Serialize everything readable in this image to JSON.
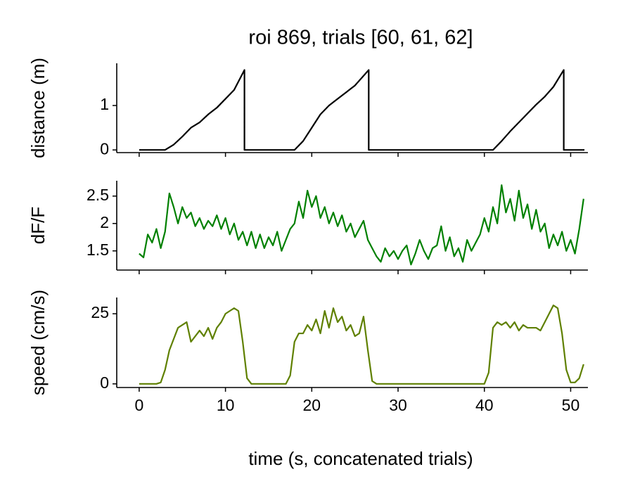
{
  "chart_data": [
    {
      "type": "line",
      "title": "roi 869, trials [60, 61, 62]",
      "ylabel": "distance (m)",
      "xlim": [
        -2.6,
        52.0
      ],
      "xticks": [
        0,
        10,
        20,
        30,
        40,
        50
      ],
      "ylim": [
        -0.06,
        1.95
      ],
      "yticks": [
        0,
        1
      ],
      "series": [
        {
          "color": "#000000",
          "x": [
            0,
            3,
            4,
            5,
            6,
            7,
            8,
            9,
            10,
            11,
            12.2,
            12.2,
            18,
            19,
            20,
            21,
            22,
            23,
            24,
            25,
            26.6,
            26.6,
            41,
            42,
            43,
            44,
            45,
            46,
            47,
            48,
            49.2,
            49.2,
            51.6
          ],
          "values": [
            0,
            0,
            0.12,
            0.3,
            0.5,
            0.62,
            0.8,
            0.95,
            1.15,
            1.35,
            1.8,
            0,
            0,
            0.2,
            0.5,
            0.8,
            1.0,
            1.15,
            1.3,
            1.45,
            1.8,
            0,
            0,
            0.2,
            0.42,
            0.62,
            0.82,
            1.02,
            1.2,
            1.42,
            1.8,
            0,
            0
          ]
        }
      ]
    },
    {
      "type": "line",
      "ylabel": "dF/F",
      "xlim": [
        -2.6,
        52.0
      ],
      "xticks": [
        0,
        10,
        20,
        30,
        40,
        50
      ],
      "ylim": [
        1.15,
        2.78
      ],
      "yticks": [
        1.5,
        2.0,
        2.5
      ],
      "series": [
        {
          "color": "#008000",
          "x": [
            0,
            0.5,
            1,
            1.5,
            2,
            2.5,
            3,
            3.5,
            4,
            4.5,
            5,
            5.5,
            6,
            6.5,
            7,
            7.5,
            8,
            8.5,
            9,
            9.5,
            10,
            10.5,
            11,
            11.5,
            12,
            12.5,
            13,
            13.5,
            14,
            14.5,
            15,
            15.5,
            16,
            16.5,
            17,
            17.5,
            18,
            18.5,
            19,
            19.5,
            20,
            20.5,
            21,
            21.5,
            22,
            22.5,
            23,
            23.5,
            24,
            24.5,
            25,
            25.5,
            26,
            26.5,
            27,
            27.5,
            28,
            28.5,
            29,
            29.5,
            30,
            30.5,
            31,
            31.5,
            32,
            32.5,
            33,
            33.5,
            34,
            34.5,
            35,
            35.5,
            36,
            36.5,
            37,
            37.5,
            38,
            38.5,
            39,
            39.5,
            40,
            40.5,
            41,
            41.5,
            42,
            42.5,
            43,
            43.5,
            44,
            44.5,
            45,
            45.5,
            46,
            46.5,
            47,
            47.5,
            48,
            48.5,
            49,
            49.5,
            50,
            50.5,
            51,
            51.5
          ],
          "values": [
            1.45,
            1.38,
            1.8,
            1.65,
            1.9,
            1.55,
            1.85,
            2.55,
            2.3,
            2.0,
            2.3,
            2.1,
            2.2,
            1.95,
            2.1,
            1.9,
            2.05,
            1.95,
            2.15,
            1.9,
            2.1,
            1.8,
            2.0,
            1.7,
            1.85,
            1.6,
            1.85,
            1.55,
            1.8,
            1.55,
            1.75,
            1.6,
            1.85,
            1.5,
            1.7,
            1.9,
            2.0,
            2.4,
            2.1,
            2.6,
            2.3,
            2.5,
            2.1,
            2.3,
            2.0,
            2.2,
            1.95,
            2.15,
            1.85,
            2.0,
            1.75,
            1.9,
            2.05,
            1.7,
            1.55,
            1.4,
            1.3,
            1.55,
            1.4,
            1.5,
            1.35,
            1.5,
            1.6,
            1.25,
            1.45,
            1.7,
            1.5,
            1.35,
            1.55,
            1.6,
            1.95,
            1.5,
            1.75,
            1.4,
            1.55,
            1.3,
            1.7,
            1.5,
            1.65,
            1.8,
            2.1,
            1.85,
            2.3,
            2.0,
            2.7,
            2.2,
            2.45,
            2.05,
            2.6,
            2.1,
            2.35,
            1.9,
            2.25,
            1.85,
            2.0,
            1.55,
            1.8,
            1.6,
            1.85,
            1.5,
            1.7,
            1.45,
            1.9,
            2.45
          ]
        }
      ]
    },
    {
      "type": "line",
      "ylabel": "speed (cm/s)",
      "xlabel": "time (s, concatenated trials)",
      "xlim": [
        -2.6,
        52.0
      ],
      "xticks": [
        0,
        10,
        20,
        30,
        40,
        50
      ],
      "ylim": [
        -1.3,
        30.8
      ],
      "yticks": [
        0,
        25
      ],
      "series": [
        {
          "color": "#5f8000",
          "x": [
            0,
            0.5,
            1,
            1.5,
            2,
            2.5,
            3,
            3.5,
            4,
            4.5,
            5,
            5.5,
            6,
            6.5,
            7,
            7.5,
            8,
            8.5,
            9,
            9.5,
            10,
            10.5,
            11,
            11.5,
            12,
            12.5,
            13,
            13.5,
            14,
            14.5,
            15,
            15.5,
            16,
            16.5,
            17,
            17.5,
            18,
            18.5,
            19,
            19.5,
            20,
            20.5,
            21,
            21.5,
            22,
            22.5,
            23,
            23.5,
            24,
            24.5,
            25,
            25.5,
            26,
            26.5,
            27,
            27.5,
            28,
            28.5,
            29,
            29.5,
            30,
            30.5,
            31,
            31.5,
            32,
            32.5,
            33,
            33.5,
            34,
            34.5,
            35,
            35.5,
            36,
            36.5,
            37,
            37.5,
            38,
            38.5,
            39,
            39.5,
            40,
            40.5,
            41,
            41.5,
            42,
            42.5,
            43,
            43.5,
            44,
            44.5,
            45,
            45.5,
            46,
            46.5,
            47,
            47.5,
            48,
            48.5,
            49,
            49.5,
            50,
            50.5,
            51,
            51.5
          ],
          "values": [
            0,
            0,
            0,
            0,
            0,
            0.5,
            5,
            12,
            16,
            20,
            21,
            22,
            15,
            17,
            19,
            17,
            20,
            16,
            20,
            22,
            25,
            26,
            27,
            26,
            15,
            2,
            0,
            0,
            0,
            0,
            0,
            0,
            0,
            0,
            0,
            3,
            15,
            18,
            18,
            21,
            19,
            23,
            18,
            26,
            20,
            27,
            22,
            24,
            19,
            21,
            17,
            18,
            24,
            12,
            1,
            0,
            0,
            0,
            0,
            0,
            0,
            0,
            0,
            0,
            0,
            0,
            0,
            0,
            0,
            0,
            0,
            0,
            0,
            0,
            0,
            0,
            0,
            0,
            0,
            0,
            0,
            4,
            20,
            22,
            21,
            22,
            20,
            22,
            19,
            21,
            20,
            20,
            20,
            19,
            22,
            25,
            28,
            27,
            18,
            5,
            0.5,
            0.5,
            2,
            7
          ]
        }
      ]
    }
  ]
}
